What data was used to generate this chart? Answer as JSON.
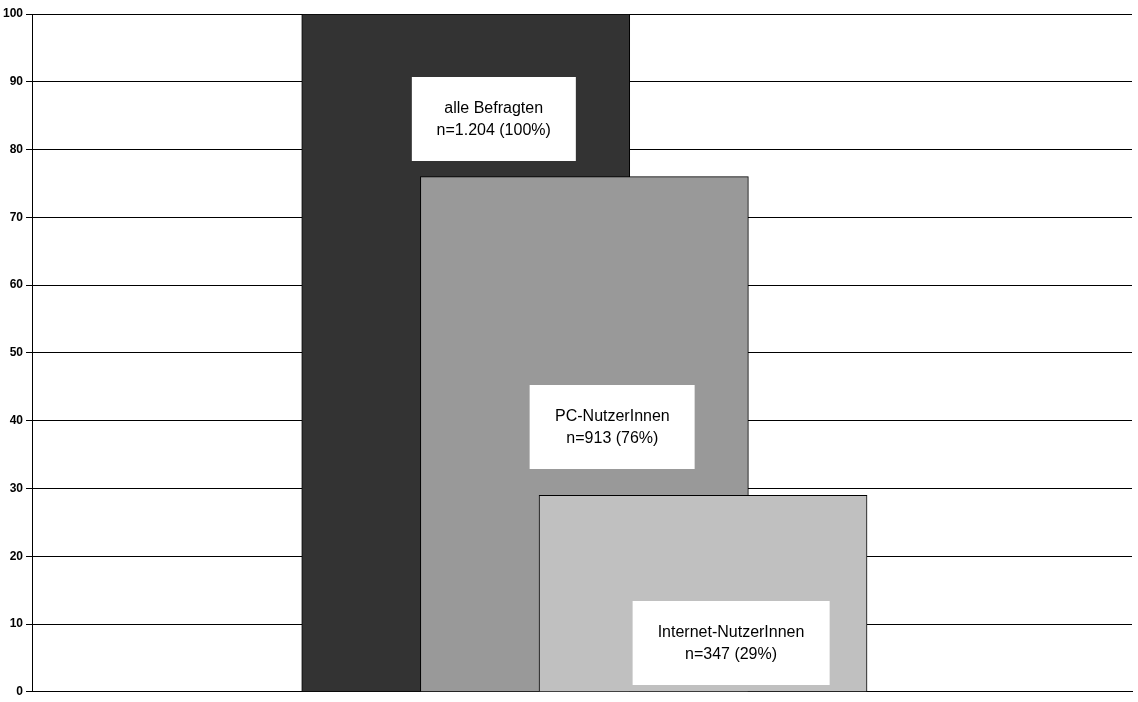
{
  "chart_data": {
    "type": "bar",
    "categories": [
      null
    ],
    "series": [
      {
        "name": "alle Befragten",
        "color": "#333333",
        "values": [
          100
        ],
        "value_labels": [
          "n=1.204 (100%)"
        ]
      },
      {
        "name": "PC-NutzerInnen",
        "color": "#999999",
        "values": [
          76
        ],
        "value_labels": [
          "n=913 (76%)"
        ]
      },
      {
        "name": "Internet-NutzerInnen",
        "color": "#c0c0c0",
        "values": [
          29
        ],
        "value_labels": [
          "n=347 (29%)"
        ]
      }
    ],
    "ylim": [
      0,
      100
    ],
    "yticks": [
      0,
      10,
      20,
      30,
      40,
      50,
      60,
      70,
      80,
      90,
      100
    ],
    "grid": "y",
    "legend": false
  }
}
